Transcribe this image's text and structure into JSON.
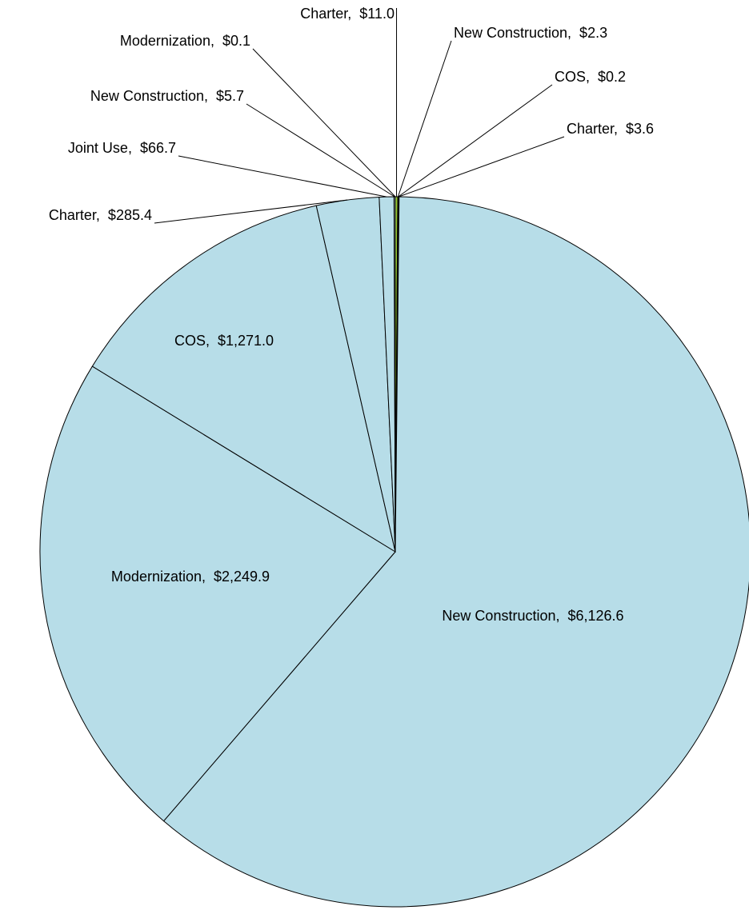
{
  "chart_data": {
    "type": "pie",
    "values": [
      11.0,
      2.3,
      0.2,
      3.6,
      6126.6,
      2249.9,
      1271.0,
      285.4,
      66.7,
      5.7,
      0.1
    ],
    "value_labels": [
      "Charter,  $11.0",
      "New Construction,  $2.3",
      "COS,  $0.2",
      "Charter,  $3.6",
      "New Construction,  $6,126.6",
      "Modernization,  $2,249.9",
      "COS,  $1,271.0",
      "Charter,  $285.4",
      "Joint Use,  $66.7",
      "New Construction,  $5.7",
      "Modernization,  $0.1"
    ],
    "colors": [
      "#9acd32",
      "#ffff99",
      "#ffcc66",
      "#cccc66",
      "#b7dde8",
      "#b7dde8",
      "#b7dde8",
      "#b7dde8",
      "#b7dde8",
      "#b7dde8",
      "#b7dde8"
    ]
  }
}
